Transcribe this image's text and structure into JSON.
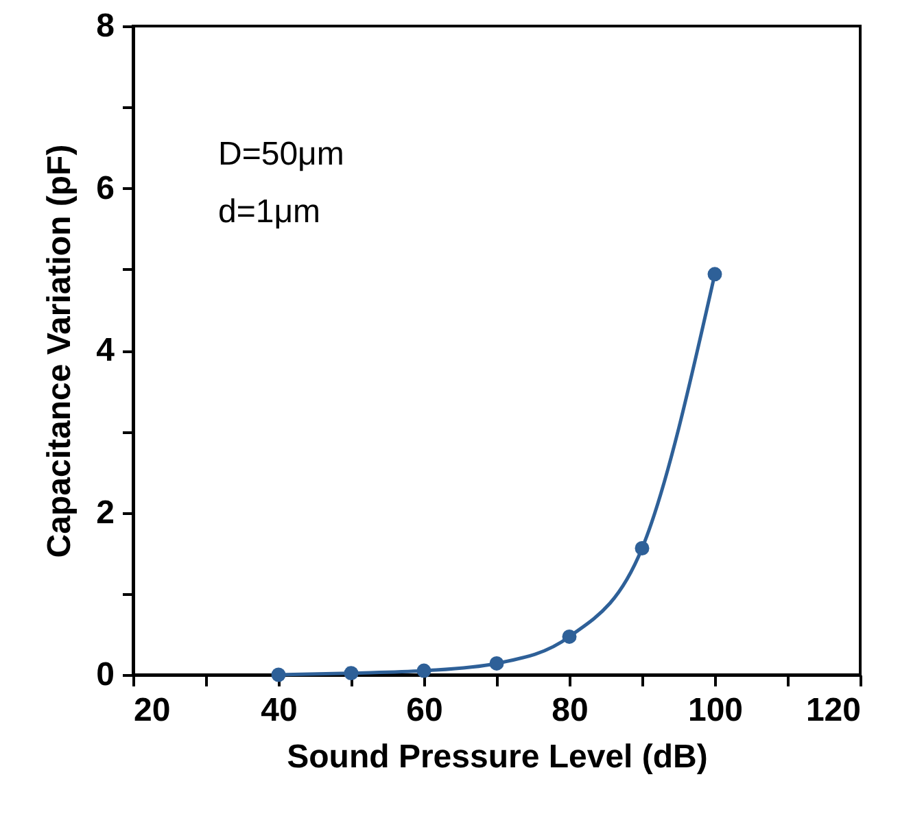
{
  "chart_data": {
    "type": "line",
    "xlabel": "Sound Pressure Level (dB)",
    "ylabel": "Capacitance Variation (pF)",
    "x": [
      40,
      50,
      60,
      70,
      80,
      90,
      100
    ],
    "series": [
      {
        "color": "#2e6098",
        "values": [
          0.0,
          0.02,
          0.05,
          0.14,
          0.47,
          1.56,
          4.94
        ]
      }
    ],
    "xlim": [
      20,
      120
    ],
    "xticks": [
      20,
      {
        "value": 30,
        "label": null
      },
      40,
      {
        "value": 50,
        "label": null
      },
      60,
      {
        "value": 70,
        "label": null
      },
      80,
      {
        "value": 90,
        "label": null
      },
      100,
      {
        "value": 110,
        "label": null
      },
      120
    ],
    "ylim": [
      0,
      8
    ],
    "yticks": [
      0,
      {
        "value": 1,
        "label": null
      },
      2,
      {
        "value": 3,
        "label": null
      },
      4,
      {
        "value": 5,
        "label": null
      },
      6,
      {
        "value": 7,
        "label": null
      },
      8
    ],
    "annotations": [
      "D=50μm",
      "d=1μm"
    ],
    "marker": "circle",
    "line_style": "solid",
    "grid": false
  }
}
